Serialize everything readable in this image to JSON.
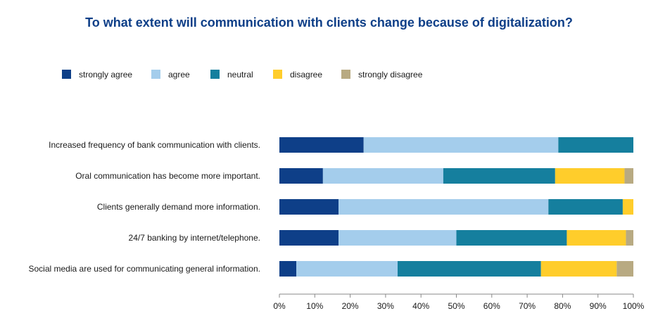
{
  "chart_data": {
    "type": "bar",
    "orientation": "horizontal",
    "stacked": true,
    "title": "To what extent will communication with clients change because of digitalization?",
    "legend_position": "top-left",
    "categories": [
      "Increased frequency of bank communication with clients.",
      "Oral communication has become more important.",
      "Clients generally demand more information.",
      "24/7 banking by internet/telephone.",
      "Social media are used for communicating general information."
    ],
    "series": [
      {
        "name": "strongly agree",
        "color": "#0e3f88",
        "values": [
          23.8,
          12.3,
          16.7,
          16.7,
          4.8
        ]
      },
      {
        "name": "agree",
        "color": "#a4cdec",
        "values": [
          55.0,
          34.0,
          59.3,
          33.3,
          28.6
        ]
      },
      {
        "name": "neutral",
        "color": "#157f9e",
        "values": [
          21.2,
          31.6,
          21.0,
          31.2,
          40.5
        ]
      },
      {
        "name": "disagree",
        "color": "#ffcd2b",
        "values": [
          0,
          19.6,
          3.0,
          16.7,
          21.4
        ]
      },
      {
        "name": "strongly disagree",
        "color": "#b8aa82",
        "values": [
          0,
          2.5,
          0,
          2.1,
          4.7
        ]
      }
    ],
    "xlim": [
      0,
      100
    ],
    "xticks": [
      "0%",
      "10%",
      "20%",
      "30%",
      "40%",
      "50%",
      "60%",
      "70%",
      "80%",
      "90%",
      "100%"
    ],
    "grid": false
  }
}
